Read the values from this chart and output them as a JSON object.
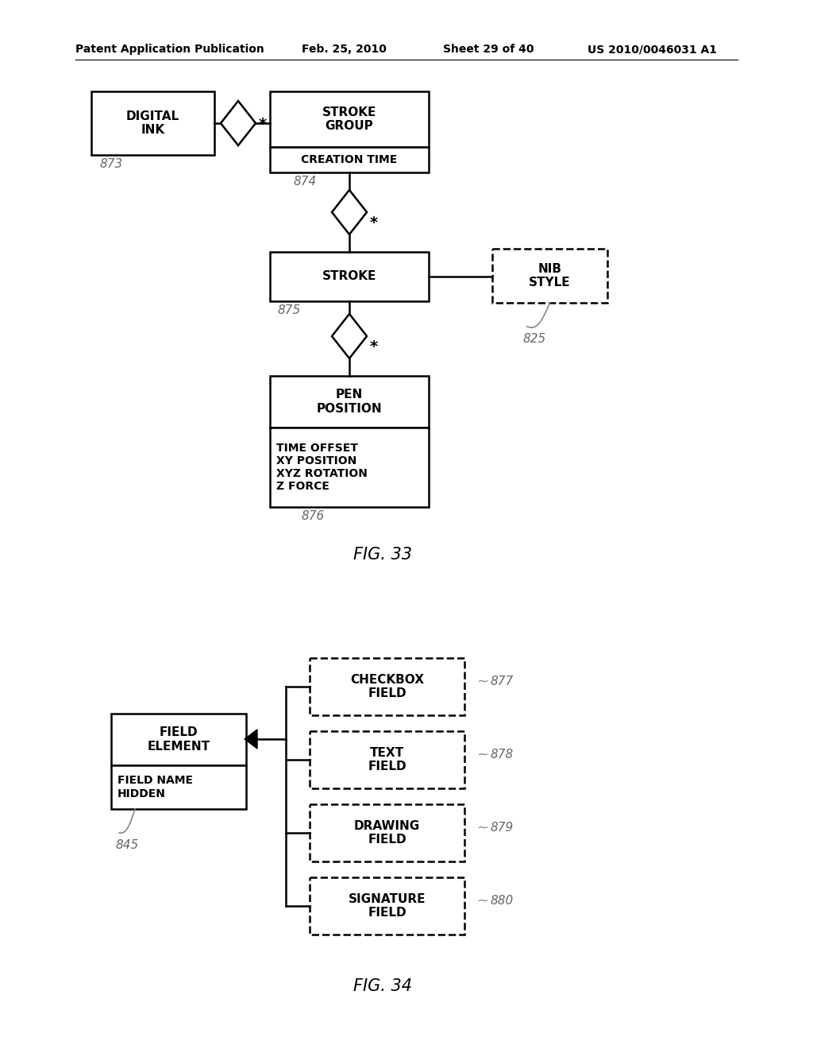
{
  "bg_color": "#ffffff",
  "header_text": "Patent Application Publication",
  "header_date": "Feb. 25, 2010",
  "header_sheet": "Sheet 29 of 40",
  "header_patent": "US 2010/0046031 A1",
  "fig33_caption": "FIG. 33",
  "fig34_caption": "FIG. 34",
  "lw": 1.8
}
